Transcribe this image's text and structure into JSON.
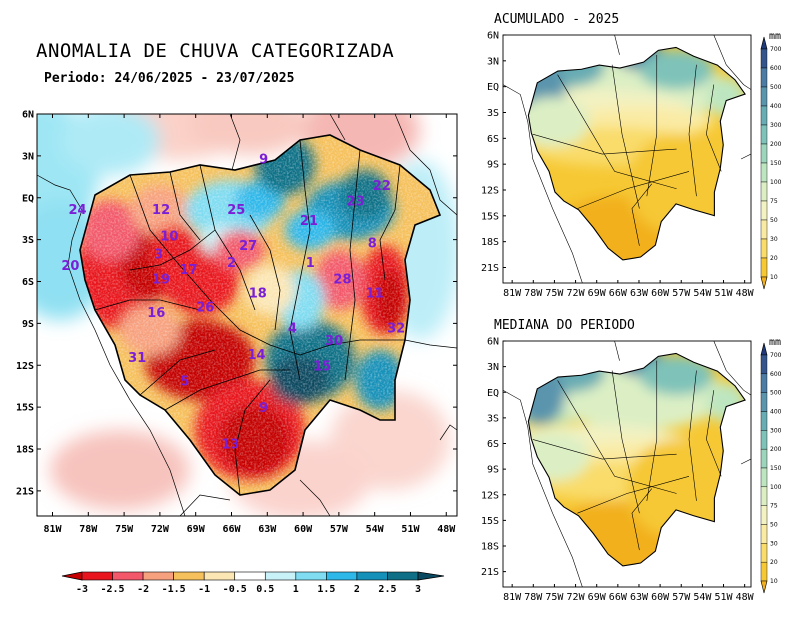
{
  "main_map": {
    "title": "ANOMALIA DE CHUVA CATEGORIZADA",
    "period": "Periodo: 24/06/2025 - 23/07/2025",
    "lat_ticks": [
      "6N",
      "3N",
      "EQ",
      "3S",
      "6S",
      "9S",
      "12S",
      "15S",
      "18S",
      "21S"
    ],
    "lon_ticks": [
      "81W",
      "78W",
      "75W",
      "72W",
      "69W",
      "66W",
      "63W",
      "60W",
      "57W",
      "54W",
      "51W",
      "48W"
    ],
    "basin_labels": [
      {
        "text": "24",
        "lon": -78.9,
        "lat": -0.8
      },
      {
        "text": "12",
        "lon": -71.9,
        "lat": -0.8
      },
      {
        "text": "25",
        "lon": -65.6,
        "lat": -0.8
      },
      {
        "text": "9",
        "lon": -63.3,
        "lat": 2.8
      },
      {
        "text": "21",
        "lon": -59.5,
        "lat": -1.6
      },
      {
        "text": "23",
        "lon": -55.6,
        "lat": -0.2
      },
      {
        "text": "22",
        "lon": -53.4,
        "lat": 0.9
      },
      {
        "text": "10",
        "lon": -71.2,
        "lat": -2.7
      },
      {
        "text": "27",
        "lon": -64.6,
        "lat": -3.4
      },
      {
        "text": "8",
        "lon": -54.2,
        "lat": -3.2
      },
      {
        "text": "20",
        "lon": -79.5,
        "lat": -4.8
      },
      {
        "text": "3",
        "lon": -72.1,
        "lat": -4.0
      },
      {
        "text": "17",
        "lon": -69.6,
        "lat": -5.1
      },
      {
        "text": "2",
        "lon": -66.0,
        "lat": -4.6
      },
      {
        "text": "1",
        "lon": -59.4,
        "lat": -4.6
      },
      {
        "text": "19",
        "lon": -71.9,
        "lat": -5.8
      },
      {
        "text": "28",
        "lon": -56.7,
        "lat": -5.8
      },
      {
        "text": "11",
        "lon": -54.0,
        "lat": -6.8
      },
      {
        "text": "18",
        "lon": -63.8,
        "lat": -6.8
      },
      {
        "text": "16",
        "lon": -72.3,
        "lat": -8.2
      },
      {
        "text": "26",
        "lon": -68.2,
        "lat": -7.8
      },
      {
        "text": "4",
        "lon": -60.9,
        "lat": -9.3
      },
      {
        "text": "32",
        "lon": -52.2,
        "lat": -9.3
      },
      {
        "text": "30",
        "lon": -57.4,
        "lat": -10.2
      },
      {
        "text": "14",
        "lon": -63.9,
        "lat": -11.2
      },
      {
        "text": "31",
        "lon": -73.9,
        "lat": -11.4
      },
      {
        "text": "15",
        "lon": -58.4,
        "lat": -12.0
      },
      {
        "text": "5",
        "lon": -69.9,
        "lat": -13.1
      },
      {
        "text": "9",
        "lon": -63.3,
        "lat": -15.0
      },
      {
        "text": "13",
        "lon": -66.1,
        "lat": -17.6
      }
    ],
    "colorbar": {
      "labels": [
        "-3",
        "-2.5",
        "-2",
        "-1.5",
        "-1",
        "-0.5",
        "0.5",
        "1",
        "1.5",
        "2",
        "2.5",
        "3"
      ],
      "colors": [
        "#c40000",
        "#e8141e",
        "#f2586a",
        "#f7a07e",
        "#f6c15c",
        "#fbe6b4",
        "#ffffff",
        "#c8f1f8",
        "#7fdcf1",
        "#2eb8ea",
        "#1590b8",
        "#0f6f86",
        "#0a4a60"
      ]
    }
  },
  "acc_map": {
    "title": "ACUMULADO - 2025",
    "lat_ticks": [
      "6N",
      "3N",
      "EQ",
      "3S",
      "6S",
      "9S",
      "12S",
      "15S",
      "18S",
      "21S"
    ],
    "lon_ticks": [
      "81W",
      "78W",
      "75W",
      "72W",
      "69W",
      "66W",
      "63W",
      "60W",
      "57W",
      "54W",
      "51W",
      "48W"
    ],
    "colorbar": {
      "unit": "mm",
      "labels": [
        "10",
        "20",
        "30",
        "50",
        "75",
        "100",
        "150",
        "200",
        "300",
        "400",
        "500",
        "600",
        "700"
      ],
      "colors": [
        "#f2b01e",
        "#f6c834",
        "#f9dc6a",
        "#faeba4",
        "#f3f2c2",
        "#dcefc4",
        "#bde6c0",
        "#9cd5bc",
        "#7ec2b9",
        "#68acb4",
        "#5a94ad",
        "#4c7ba3",
        "#34568c",
        "#1e3a7a"
      ]
    }
  },
  "med_map": {
    "title": "MEDIANA DO PERIODO",
    "lat_ticks": [
      "6N",
      "3N",
      "EQ",
      "3S",
      "6S",
      "9S",
      "12S",
      "15S",
      "18S",
      "21S"
    ],
    "lon_ticks": [
      "81W",
      "78W",
      "75W",
      "72W",
      "69W",
      "66W",
      "63W",
      "60W",
      "57W",
      "54W",
      "51W",
      "48W"
    ],
    "colorbar": {
      "unit": "mm",
      "labels": [
        "10",
        "20",
        "30",
        "50",
        "75",
        "100",
        "150",
        "200",
        "300",
        "400",
        "500",
        "600",
        "700"
      ],
      "colors": [
        "#f2b01e",
        "#f6c834",
        "#f9dc6a",
        "#faeba4",
        "#f3f2c2",
        "#dcefc4",
        "#bde6c0",
        "#9cd5bc",
        "#7ec2b9",
        "#68acb4",
        "#5a94ad",
        "#4c7ba3",
        "#34568c",
        "#1e3a7a"
      ]
    }
  }
}
